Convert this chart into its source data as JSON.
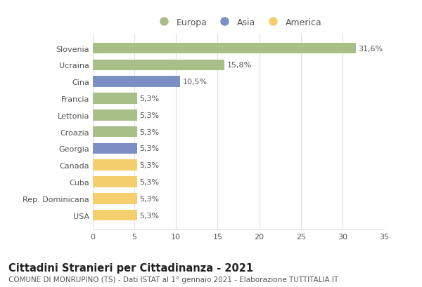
{
  "countries": [
    "Slovenia",
    "Ucraina",
    "Cina",
    "Francia",
    "Lettonia",
    "Croazia",
    "Georgia",
    "Canada",
    "Cuba",
    "Rep. Dominicana",
    "USA"
  ],
  "values": [
    31.6,
    15.8,
    10.5,
    5.3,
    5.3,
    5.3,
    5.3,
    5.3,
    5.3,
    5.3,
    5.3
  ],
  "labels": [
    "31,6%",
    "15,8%",
    "10,5%",
    "5,3%",
    "5,3%",
    "5,3%",
    "5,3%",
    "5,3%",
    "5,3%",
    "5,3%",
    "5,3%"
  ],
  "categories": [
    "Europa",
    "Asia",
    "America"
  ],
  "continent": [
    "Europa",
    "Europa",
    "Asia",
    "Europa",
    "Europa",
    "Europa",
    "Asia",
    "America",
    "America",
    "America",
    "America"
  ],
  "colors": {
    "Europa": "#a8bf88",
    "Asia": "#7b8fc4",
    "America": "#f5ce6e"
  },
  "background_color": "#ffffff",
  "grid_color": "#e0e0e0",
  "xlim": [
    0,
    35
  ],
  "xticks": [
    0,
    5,
    10,
    15,
    20,
    25,
    30,
    35
  ],
  "title": "Cittadini Stranieri per Cittadinanza - 2021",
  "subtitle": "COMUNE DI MONRUPINO (TS) - Dati ISTAT al 1° gennaio 2021 - Elaborazione TUTTITALIA.IT",
  "title_fontsize": 10.5,
  "subtitle_fontsize": 7.5,
  "label_fontsize": 8,
  "tick_fontsize": 8
}
